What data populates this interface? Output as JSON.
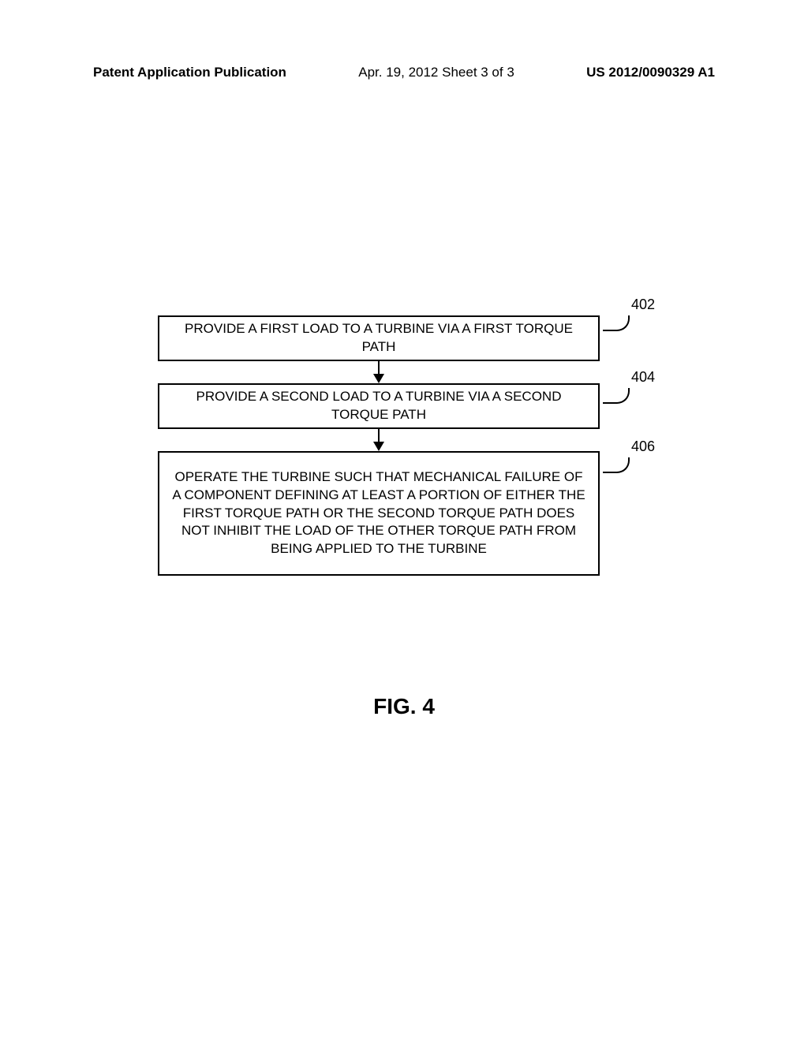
{
  "header": {
    "left": "Patent Application Publication",
    "center": "Apr. 19, 2012  Sheet 3 of 3",
    "right": "US 2012/0090329 A1"
  },
  "flowchart": {
    "type": "flowchart",
    "box_border_color": "#000000",
    "box_border_width": 2,
    "background_color": "#ffffff",
    "text_color": "#000000",
    "font_family": "Arial",
    "box_fontsize": 17,
    "ref_fontsize": 18,
    "boxes": [
      {
        "id": "402",
        "text": "PROVIDE A FIRST LOAD TO A TURBINE VIA A FIRST TORQUE PATH"
      },
      {
        "id": "404",
        "text": "PROVIDE A SECOND LOAD TO A TURBINE VIA A SECOND TORQUE PATH"
      },
      {
        "id": "406",
        "text": "OPERATE THE TURBINE SUCH THAT MECHANICAL FAILURE OF A COMPONENT DEFINING AT LEAST A PORTION OF EITHER THE FIRST TORQUE PATH OR THE SECOND TORQUE PATH DOES NOT INHIBIT THE LOAD OF THE OTHER TORQUE PATH FROM BEING APPLIED TO THE TURBINE"
      }
    ],
    "refs": {
      "r1": "402",
      "r2": "404",
      "r3": "406"
    },
    "arrows": [
      {
        "from": "402",
        "to": "404"
      },
      {
        "from": "404",
        "to": "406"
      }
    ]
  },
  "caption": "FIG. 4",
  "caption_fontsize": 28,
  "caption_weight": "bold"
}
